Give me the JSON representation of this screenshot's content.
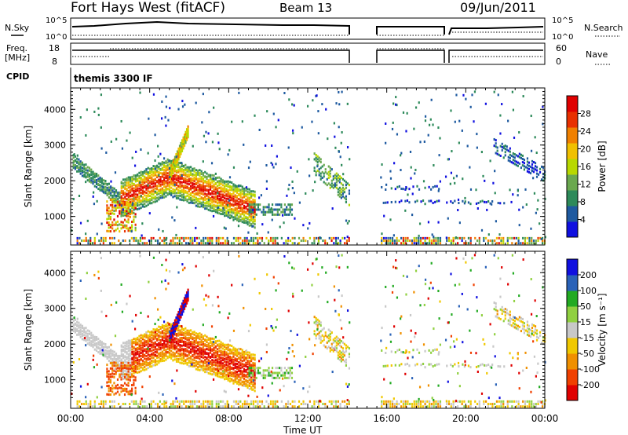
{
  "header": {
    "title": "Fort Hays West (fitACF)",
    "beam": "Beam 13",
    "date": "09/Jun/2011"
  },
  "top_panels": {
    "nsky_label": "N.Sky",
    "nsearch_label": "N.Search",
    "noise_tick_high": "10^5",
    "noise_tick_low": "10^0",
    "freq_label_1": "Freq.",
    "freq_label_2": "[MHz]",
    "freq_tick_high": "18",
    "freq_tick_low": "8",
    "nave_label": "Nave",
    "nave_tick_high": "60",
    "nave_tick_low": "0",
    "cpid_label": "CPID",
    "cpid_value": "themis 3300 IF"
  },
  "chart_data": [
    {
      "type": "heatmap",
      "panel": "power",
      "ylabel": "Slant Range [km]",
      "xlabel": "",
      "x_ticks": [
        "00:00",
        "04:00",
        "08:00",
        "12:00",
        "16:00",
        "20:00",
        "00:00"
      ],
      "y_ticks": [
        1000,
        2000,
        3000,
        4000
      ],
      "ylim": [
        200,
        4600
      ],
      "xlim_hours": [
        0,
        24
      ],
      "colorbar_label": "Power [dB]",
      "colorbar_ticks": [
        4,
        8,
        12,
        16,
        20,
        24,
        28
      ],
      "colorbar_range": [
        0,
        32
      ]
    },
    {
      "type": "heatmap",
      "panel": "velocity",
      "ylabel": "Slant Range [km]",
      "xlabel": "Time UT",
      "x_ticks": [
        "00:00",
        "04:00",
        "08:00",
        "12:00",
        "16:00",
        "20:00",
        "00:00"
      ],
      "y_ticks": [
        1000,
        2000,
        3000,
        4000
      ],
      "ylim": [
        200,
        4600
      ],
      "xlim_hours": [
        0,
        24
      ],
      "colorbar_label": "Velocity [m s⁻¹]",
      "colorbar_ticks": [
        "200",
        "100",
        "50",
        "15",
        "-15",
        "-50",
        "-100",
        "-200"
      ]
    }
  ],
  "colors": {
    "power_scale": [
      "#1010e0",
      "#1e5aa0",
      "#2d8a5a",
      "#6aa84f",
      "#b8d800",
      "#f0c000",
      "#f08000",
      "#e83000",
      "#e00000"
    ],
    "velocity_scale": [
      "#1010e0",
      "#2a62b8",
      "#22aa22",
      "#90d040",
      "#c8c8c8",
      "#f0c800",
      "#f09000",
      "#f04000",
      "#e00000"
    ]
  }
}
